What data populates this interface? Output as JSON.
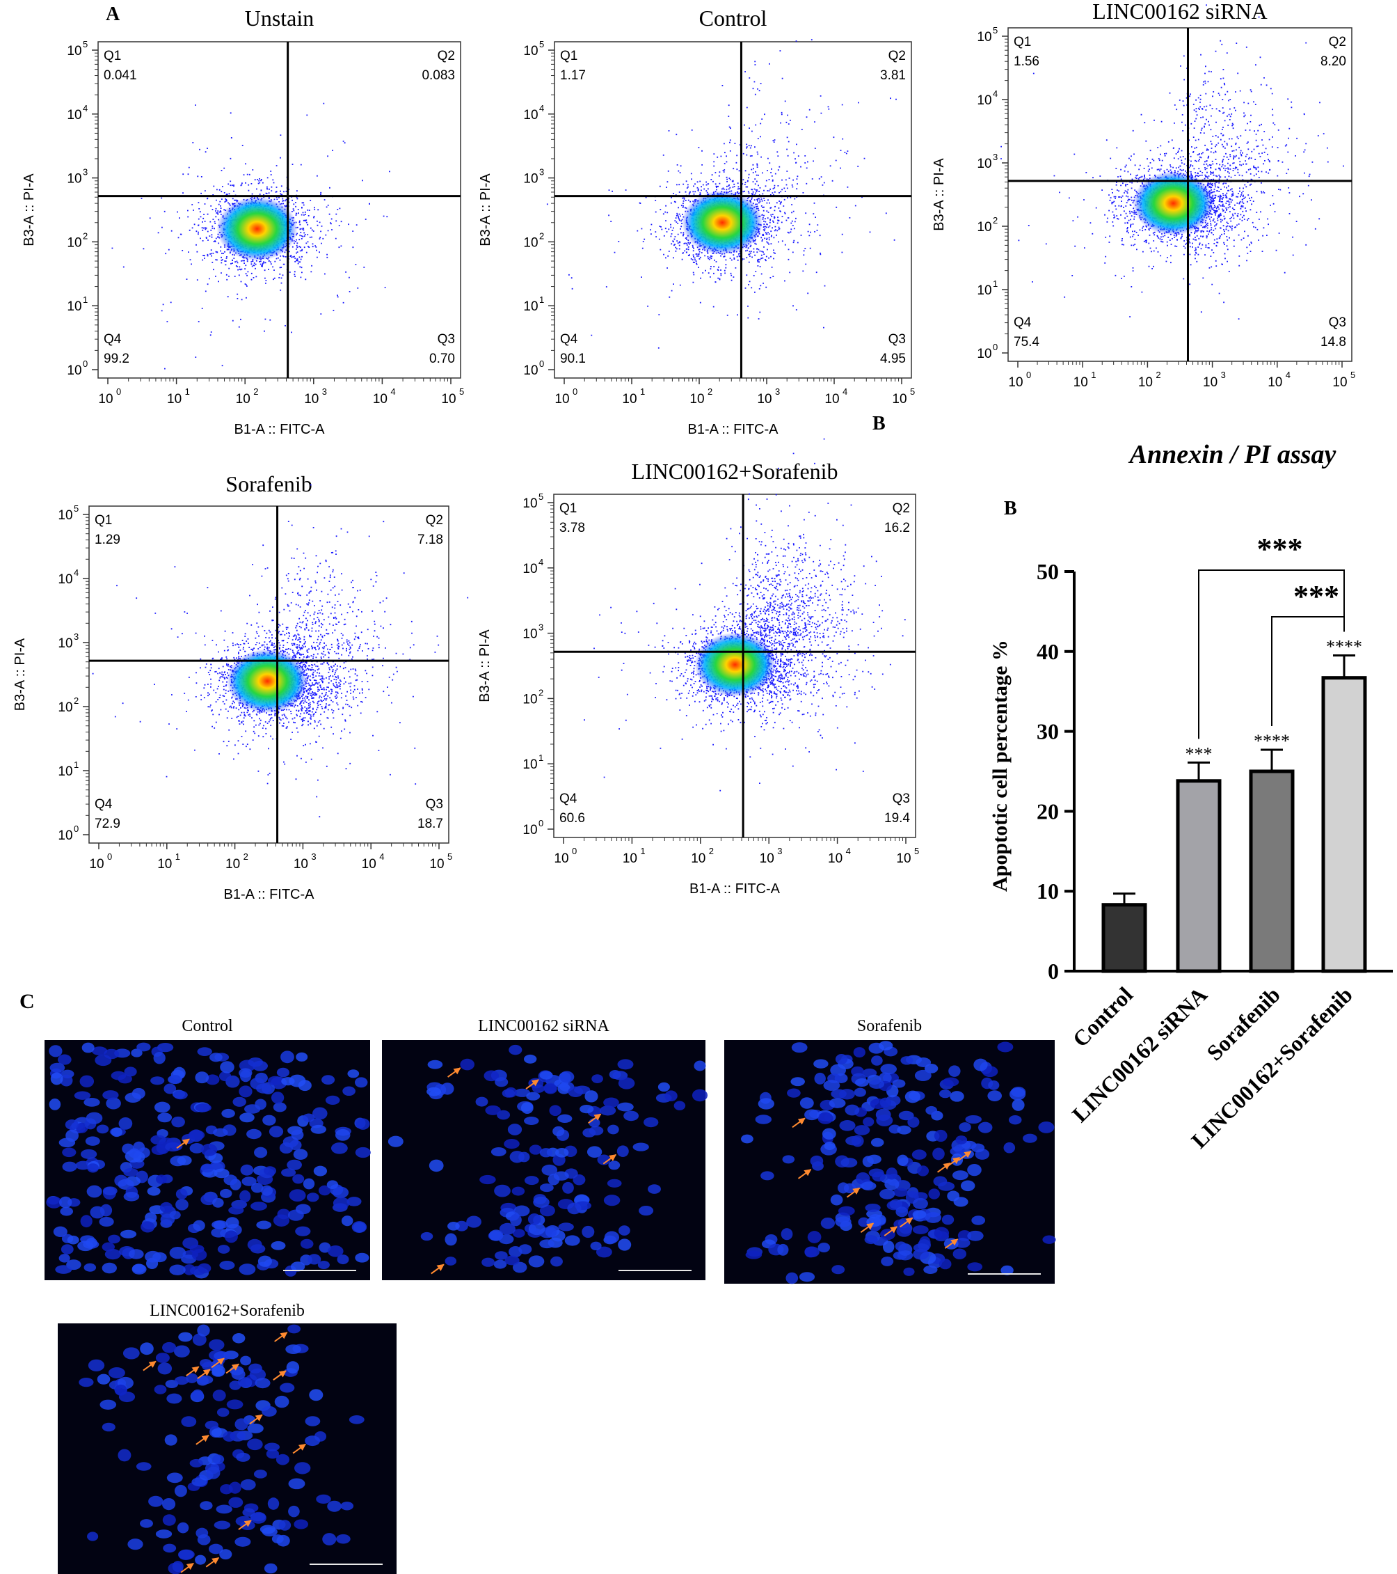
{
  "panel_labels": {
    "a": "A",
    "b_small": "B",
    "b": "B",
    "c": "C"
  },
  "flow": {
    "x_axis_label": "B1-A :: FITC-A",
    "y_axis_label": "B3-A :: PI-A",
    "x_ticks": [
      "10",
      "10",
      "10",
      "10",
      "10",
      "10"
    ],
    "tick_exponents": [
      "0",
      "1",
      "2",
      "3",
      "4",
      "5"
    ],
    "quadrant_names": [
      "Q1",
      "Q2",
      "Q3",
      "Q4"
    ],
    "dot_color": "#1a1aff",
    "gate_color": "#000000"
  },
  "chart_data": [
    {
      "type": "scatter",
      "title": "Unstain",
      "xlabel": "B1-A :: FITC-A",
      "ylabel": "B3-A :: PI-A",
      "scale": "log",
      "xlim": [
        1,
        100000
      ],
      "ylim": [
        1,
        100000
      ],
      "gate": {
        "x": 420,
        "y": 520
      },
      "cluster_center": {
        "x": 150,
        "y": 160
      },
      "quadrants": {
        "Q1": "0.041",
        "Q2": "0.083",
        "Q3": "0.70",
        "Q4": "99.2"
      }
    },
    {
      "type": "scatter",
      "title": "Control",
      "xlabel": "B1-A :: FITC-A",
      "ylabel": "B3-A :: PI-A",
      "scale": "log",
      "xlim": [
        1,
        100000
      ],
      "ylim": [
        1,
        100000
      ],
      "gate": {
        "x": 420,
        "y": 520
      },
      "cluster_center": {
        "x": 220,
        "y": 200
      },
      "quadrants": {
        "Q1": "1.17",
        "Q2": "3.81",
        "Q3": "4.95",
        "Q4": "90.1"
      }
    },
    {
      "type": "scatter",
      "title": "LINC00162 siRNA",
      "xlabel": "",
      "ylabel": "B3-A :: PI-A",
      "scale": "log",
      "xlim": [
        1,
        100000
      ],
      "ylim": [
        1,
        100000
      ],
      "gate": {
        "x": 420,
        "y": 520
      },
      "cluster_center": {
        "x": 250,
        "y": 230
      },
      "quadrants": {
        "Q1": "1.56",
        "Q2": "8.20",
        "Q3": "14.8",
        "Q4": "75.4"
      }
    },
    {
      "type": "scatter",
      "title": "Sorafenib",
      "xlabel": "B1-A :: FITC-A",
      "ylabel": "B3-A :: PI-A",
      "scale": "log",
      "xlim": [
        1,
        100000
      ],
      "ylim": [
        1,
        100000
      ],
      "gate": {
        "x": 420,
        "y": 520
      },
      "cluster_center": {
        "x": 300,
        "y": 250
      },
      "quadrants": {
        "Q1": "1.29",
        "Q2": "7.18",
        "Q3": "18.7",
        "Q4": "72.9"
      }
    },
    {
      "type": "scatter",
      "title": "LINC00162+Sorafenib",
      "xlabel": "B1-A :: FITC-A",
      "ylabel": "B3-A :: PI-A",
      "scale": "log",
      "xlim": [
        1,
        100000
      ],
      "ylim": [
        1,
        100000
      ],
      "gate": {
        "x": 420,
        "y": 520
      },
      "cluster_center": {
        "x": 320,
        "y": 330
      },
      "quadrants": {
        "Q1": "3.78",
        "Q2": "16.2",
        "Q3": "19.4",
        "Q4": "60.6"
      }
    },
    {
      "type": "bar",
      "title": "Annexin / PI assay",
      "ylabel": "Apoptotic cell percentage %",
      "categories": [
        "Control",
        "LINC00162 siRNA",
        "Sorafenib",
        "LINC00162+Sorafenib"
      ],
      "values": [
        8.3,
        23.8,
        25.0,
        36.7
      ],
      "errors": [
        1.4,
        2.3,
        2.7,
        2.8
      ],
      "colors": [
        "#333333",
        "#a3a3a8",
        "#7a7a7a",
        "#d2d2d2"
      ],
      "significance": [
        "",
        "***",
        "****",
        "****"
      ],
      "comparisons": [
        {
          "from": 1,
          "to": 3,
          "label": "***"
        },
        {
          "from": 2,
          "to": 3,
          "label": "***"
        }
      ],
      "ylim": [
        0,
        50
      ],
      "yticks": [
        "0",
        "10",
        "20",
        "30",
        "40",
        "50"
      ]
    }
  ],
  "micrographs": [
    {
      "title": "Control"
    },
    {
      "title": "LINC00162 siRNA"
    },
    {
      "title": "Sorafenib"
    },
    {
      "title": "LINC00162+Sorafenib"
    }
  ]
}
